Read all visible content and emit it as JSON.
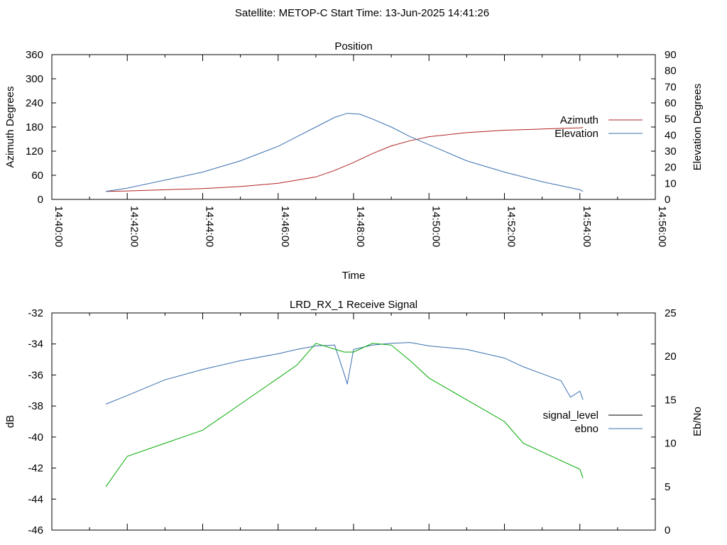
{
  "suptitle": "Satellite: METOP-C    Start Time: 13-Jun-2025 14:41:26",
  "chart_data": [
    {
      "type": "line",
      "title": "Position",
      "xlabel": "Time",
      "ylabel": "Azimuth Degrees",
      "y2label": "Elevation Degrees",
      "x_ticks": [
        "14:40:00",
        "14:42:00",
        "14:44:00",
        "14:46:00",
        "14:48:00",
        "14:50:00",
        "14:52:00",
        "14:54:00",
        "14:56:00"
      ],
      "xlim": [
        "14:40:00",
        "14:56:00"
      ],
      "ylim": [
        0,
        360
      ],
      "y_ticks": [
        0,
        60,
        120,
        180,
        240,
        300,
        360
      ],
      "y2lim": [
        0,
        90
      ],
      "y2_ticks": [
        0,
        10,
        20,
        30,
        40,
        50,
        60,
        70,
        80,
        90
      ],
      "legend_position": "right",
      "series": [
        {
          "name": "Azimuth",
          "axis": "left",
          "color": "#b22222",
          "points": [
            [
              "14:41:26",
              20
            ],
            [
              "14:42:00",
              21
            ],
            [
              "14:43:00",
              24
            ],
            [
              "14:44:00",
              27
            ],
            [
              "14:45:00",
              32
            ],
            [
              "14:46:00",
              40
            ],
            [
              "14:47:00",
              56
            ],
            [
              "14:47:30",
              72
            ],
            [
              "14:48:00",
              92
            ],
            [
              "14:48:30",
              114
            ],
            [
              "14:49:00",
              133
            ],
            [
              "14:49:30",
              146
            ],
            [
              "14:50:00",
              156
            ],
            [
              "14:51:00",
              166
            ],
            [
              "14:52:00",
              172
            ],
            [
              "14:53:00",
              175
            ],
            [
              "14:54:00",
              178
            ],
            [
              "14:54:05",
              179
            ]
          ]
        },
        {
          "name": "Elevation",
          "axis": "right",
          "color": "#3a6fb0",
          "points": [
            [
              "14:41:26",
              5
            ],
            [
              "14:42:00",
              7
            ],
            [
              "14:43:00",
              12
            ],
            [
              "14:44:00",
              17
            ],
            [
              "14:45:00",
              24
            ],
            [
              "14:46:00",
              33
            ],
            [
              "14:46:30",
              39
            ],
            [
              "14:47:00",
              45
            ],
            [
              "14:47:30",
              51
            ],
            [
              "14:47:50",
              53.5
            ],
            [
              "14:48:10",
              53
            ],
            [
              "14:48:30",
              50
            ],
            [
              "14:49:00",
              45
            ],
            [
              "14:49:30",
              39
            ],
            [
              "14:50:00",
              34
            ],
            [
              "14:51:00",
              24
            ],
            [
              "14:52:00",
              17
            ],
            [
              "14:53:00",
              11
            ],
            [
              "14:54:00",
              6
            ],
            [
              "14:54:05",
              5
            ]
          ]
        }
      ]
    },
    {
      "type": "line",
      "title": "LRD_RX_1 Receive Signal",
      "ylabel": "dB",
      "y2label": "Eb/No",
      "xlim": [
        "14:40:00",
        "14:56:00"
      ],
      "ylim": [
        -46,
        -32
      ],
      "y_ticks": [
        -46,
        -44,
        -42,
        -40,
        -38,
        -36,
        -34,
        -32
      ],
      "y2lim": [
        0,
        25
      ],
      "y2_ticks": [
        0,
        5,
        10,
        15,
        20,
        25
      ],
      "legend_position": "right",
      "series": [
        {
          "name": "signal_level",
          "axis": "left",
          "color": "#000000",
          "points": []
        },
        {
          "name": "ebno",
          "axis": "right",
          "color": "#3a6fb0",
          "points": [
            [
              "14:41:26",
              14.5
            ],
            [
              "14:42:00",
              15.5
            ],
            [
              "14:43:00",
              17.3
            ],
            [
              "14:44:00",
              18.5
            ],
            [
              "14:45:00",
              19.5
            ],
            [
              "14:46:00",
              20.3
            ],
            [
              "14:46:30",
              20.8
            ],
            [
              "14:47:00",
              21.2
            ],
            [
              "14:47:30",
              21.3
            ],
            [
              "14:47:45",
              18
            ],
            [
              "14:47:50",
              16.8
            ],
            [
              "14:48:00",
              20.8
            ],
            [
              "14:48:30",
              21.3
            ],
            [
              "14:49:00",
              21.5
            ],
            [
              "14:49:30",
              21.6
            ],
            [
              "14:50:00",
              21.2
            ],
            [
              "14:51:00",
              20.8
            ],
            [
              "14:52:00",
              19.8
            ],
            [
              "14:52:30",
              18.8
            ],
            [
              "14:53:00",
              18
            ],
            [
              "14:53:30",
              17.2
            ],
            [
              "14:53:45",
              15.3
            ],
            [
              "14:54:00",
              16
            ],
            [
              "14:54:05",
              15
            ]
          ]
        },
        {
          "name": "",
          "axis": "right",
          "color": "#00aa00",
          "points": [
            [
              "14:41:26",
              5
            ],
            [
              "14:42:00",
              8.5
            ],
            [
              "14:43:00",
              10
            ],
            [
              "14:44:00",
              11.5
            ],
            [
              "14:45:00",
              14.5
            ],
            [
              "14:46:00",
              17.5
            ],
            [
              "14:46:30",
              19
            ],
            [
              "14:47:00",
              21.5
            ],
            [
              "14:47:45",
              20.5
            ],
            [
              "14:48:00",
              20.5
            ],
            [
              "14:48:30",
              21.5
            ],
            [
              "14:49:00",
              21.3
            ],
            [
              "14:49:30",
              19.5
            ],
            [
              "14:50:00",
              17.5
            ],
            [
              "14:51:00",
              15
            ],
            [
              "14:52:00",
              12.5
            ],
            [
              "14:52:30",
              10
            ],
            [
              "14:53:00",
              9
            ],
            [
              "14:53:30",
              8
            ],
            [
              "14:54:00",
              7
            ],
            [
              "14:54:05",
              6
            ]
          ]
        }
      ]
    }
  ]
}
